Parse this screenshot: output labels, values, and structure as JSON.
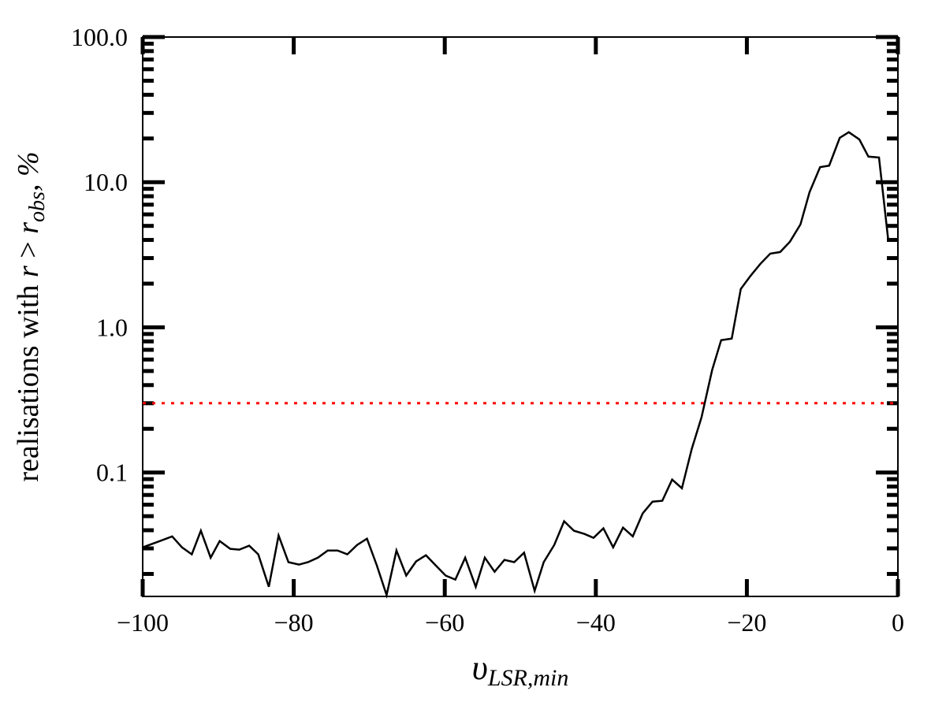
{
  "chart_data": {
    "type": "line",
    "xlabel": [
      "υ",
      "LSR,min"
    ],
    "ylabel": [
      "realisations with ",
      "r",
      " > ",
      "r",
      "obs",
      ", %"
    ],
    "log_y": true,
    "xlim": [
      -100,
      0
    ],
    "ylim": [
      0.014,
      100
    ],
    "xticks": [
      {
        "value": -100,
        "label": "−100"
      },
      {
        "value": -80,
        "label": "−80"
      },
      {
        "value": -60,
        "label": "−60"
      },
      {
        "value": -40,
        "label": "−40"
      },
      {
        "value": -20,
        "label": "−20"
      },
      0
    ],
    "yticks": [
      {
        "value": 0.1,
        "label": "0.1"
      },
      {
        "value": 1,
        "label": "1.0"
      },
      {
        "value": 10,
        "label": "10.0"
      },
      {
        "value": 100,
        "label": "100.0"
      }
    ],
    "yminorticks": [
      0.02,
      0.03,
      0.04,
      0.05,
      0.06,
      0.07,
      0.08,
      0.09,
      0.2,
      0.3,
      0.4,
      0.5,
      0.6,
      0.7,
      0.8,
      0.9,
      2,
      3,
      4,
      5,
      6,
      7,
      8,
      9,
      20,
      30,
      40,
      50,
      60,
      70,
      80,
      90
    ],
    "reference_line": {
      "value": 0.3,
      "color": "#ff0000"
    },
    "series": [
      {
        "color": "#000000",
        "x": [
          -100.0,
          -98.0,
          -96.1,
          -94.8,
          -93.5,
          -92.3,
          -91.0,
          -89.8,
          -88.4,
          -87.2,
          -85.9,
          -84.7,
          -83.3,
          -82.0,
          -80.7,
          -79.3,
          -78.1,
          -76.8,
          -75.5,
          -74.2,
          -72.9,
          -71.6,
          -70.3,
          -69.0,
          -67.7,
          -66.4,
          -65.1,
          -63.8,
          -62.5,
          -61.2,
          -59.9,
          -58.6,
          -57.3,
          -55.9,
          -54.7,
          -53.4,
          -52.1,
          -50.8,
          -49.5,
          -48.1,
          -46.9,
          -45.5,
          -44.2,
          -42.9,
          -41.5,
          -40.3,
          -39.0,
          -37.7,
          -36.4,
          -35.1,
          -33.8,
          -32.5,
          -31.2,
          -29.9,
          -28.6,
          -27.3,
          -26.0,
          -24.6,
          -23.4,
          -22.0,
          -20.8,
          -19.5,
          -18.2,
          -16.9,
          -15.6,
          -14.3,
          -12.9,
          -11.7,
          -10.3,
          -9.1,
          -7.7,
          -6.5,
          -5.1,
          -3.9,
          -2.5,
          -1.3
        ],
        "values": [
          0.0305,
          0.0333,
          0.0363,
          0.0305,
          0.0273,
          0.0397,
          0.0259,
          0.0337,
          0.0298,
          0.0294,
          0.0313,
          0.0273,
          0.0163,
          0.0368,
          0.0241,
          0.0232,
          0.0241,
          0.0259,
          0.029,
          0.029,
          0.0273,
          0.0317,
          0.035,
          0.0229,
          0.0143,
          0.029,
          0.0195,
          0.0244,
          0.0269,
          0.0229,
          0.0195,
          0.0183,
          0.0259,
          0.0163,
          0.0259,
          0.0207,
          0.025,
          0.0241,
          0.028,
          0.0153,
          0.0241,
          0.0317,
          0.0461,
          0.0397,
          0.0377,
          0.0355,
          0.0412,
          0.0305,
          0.0417,
          0.0363,
          0.0522,
          0.063,
          0.0638,
          0.0894,
          0.0779,
          0.1455,
          0.24,
          0.507,
          0.816,
          0.836,
          1.84,
          2.27,
          2.74,
          3.22,
          3.3,
          3.89,
          5.12,
          8.54,
          12.7,
          13.0,
          20.2,
          22.1,
          19.7,
          15.0,
          14.8,
          4.1
        ]
      }
    ]
  }
}
